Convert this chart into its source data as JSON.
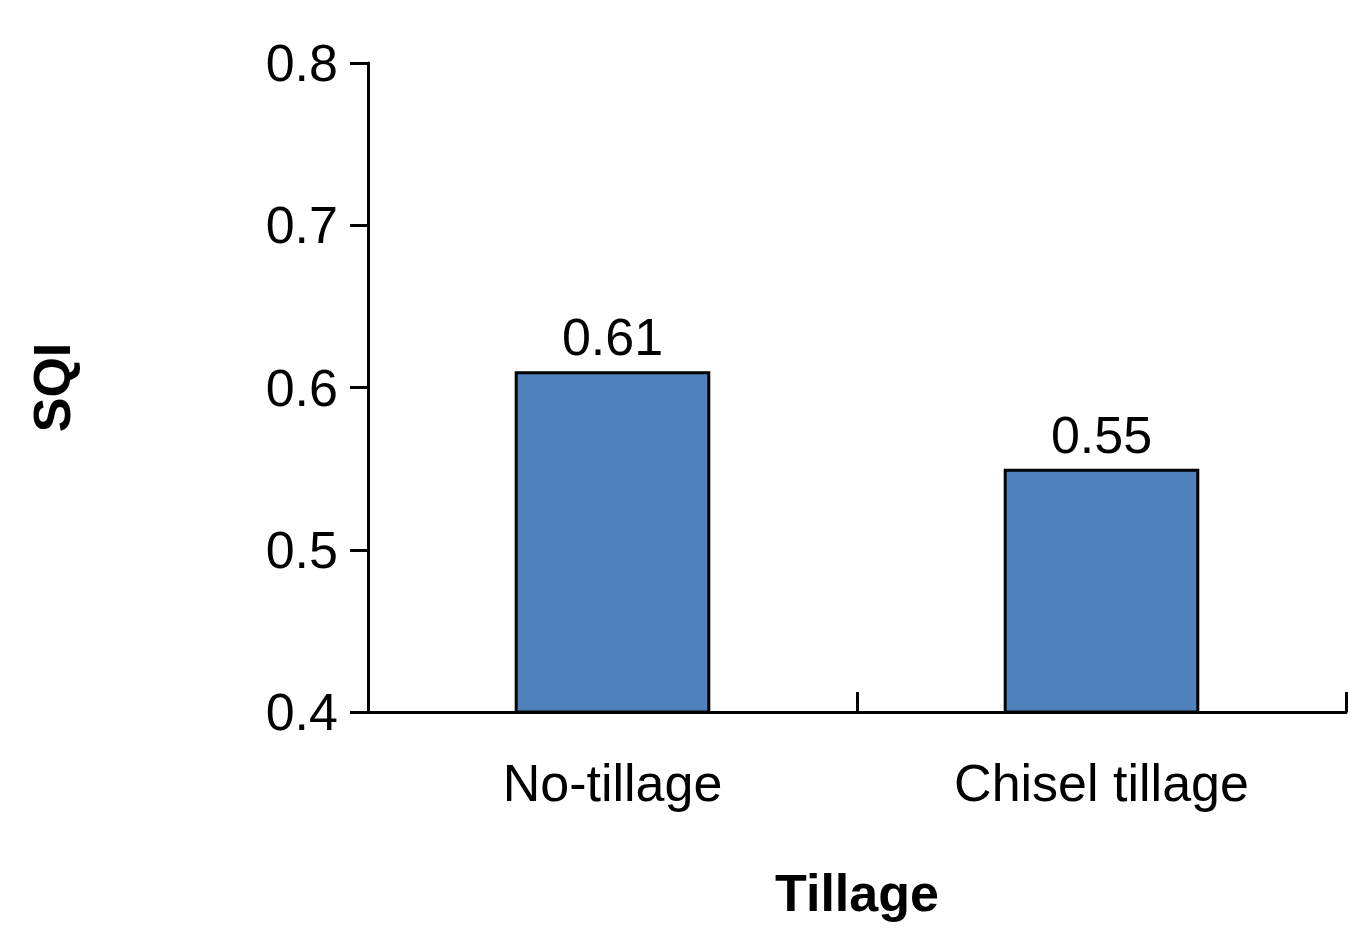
{
  "chart_data": {
    "type": "bar",
    "xlabel": "Tillage",
    "ylabel": "SQI",
    "categories": [
      "No-tillage",
      "Chisel tillage"
    ],
    "values": [
      0.61,
      0.55
    ],
    "color": "#4f81bd",
    "ylim": [
      0.4,
      0.8
    ],
    "yticks": [
      0.4,
      0.5,
      0.6,
      0.7,
      0.8
    ],
    "data_labels": true
  }
}
